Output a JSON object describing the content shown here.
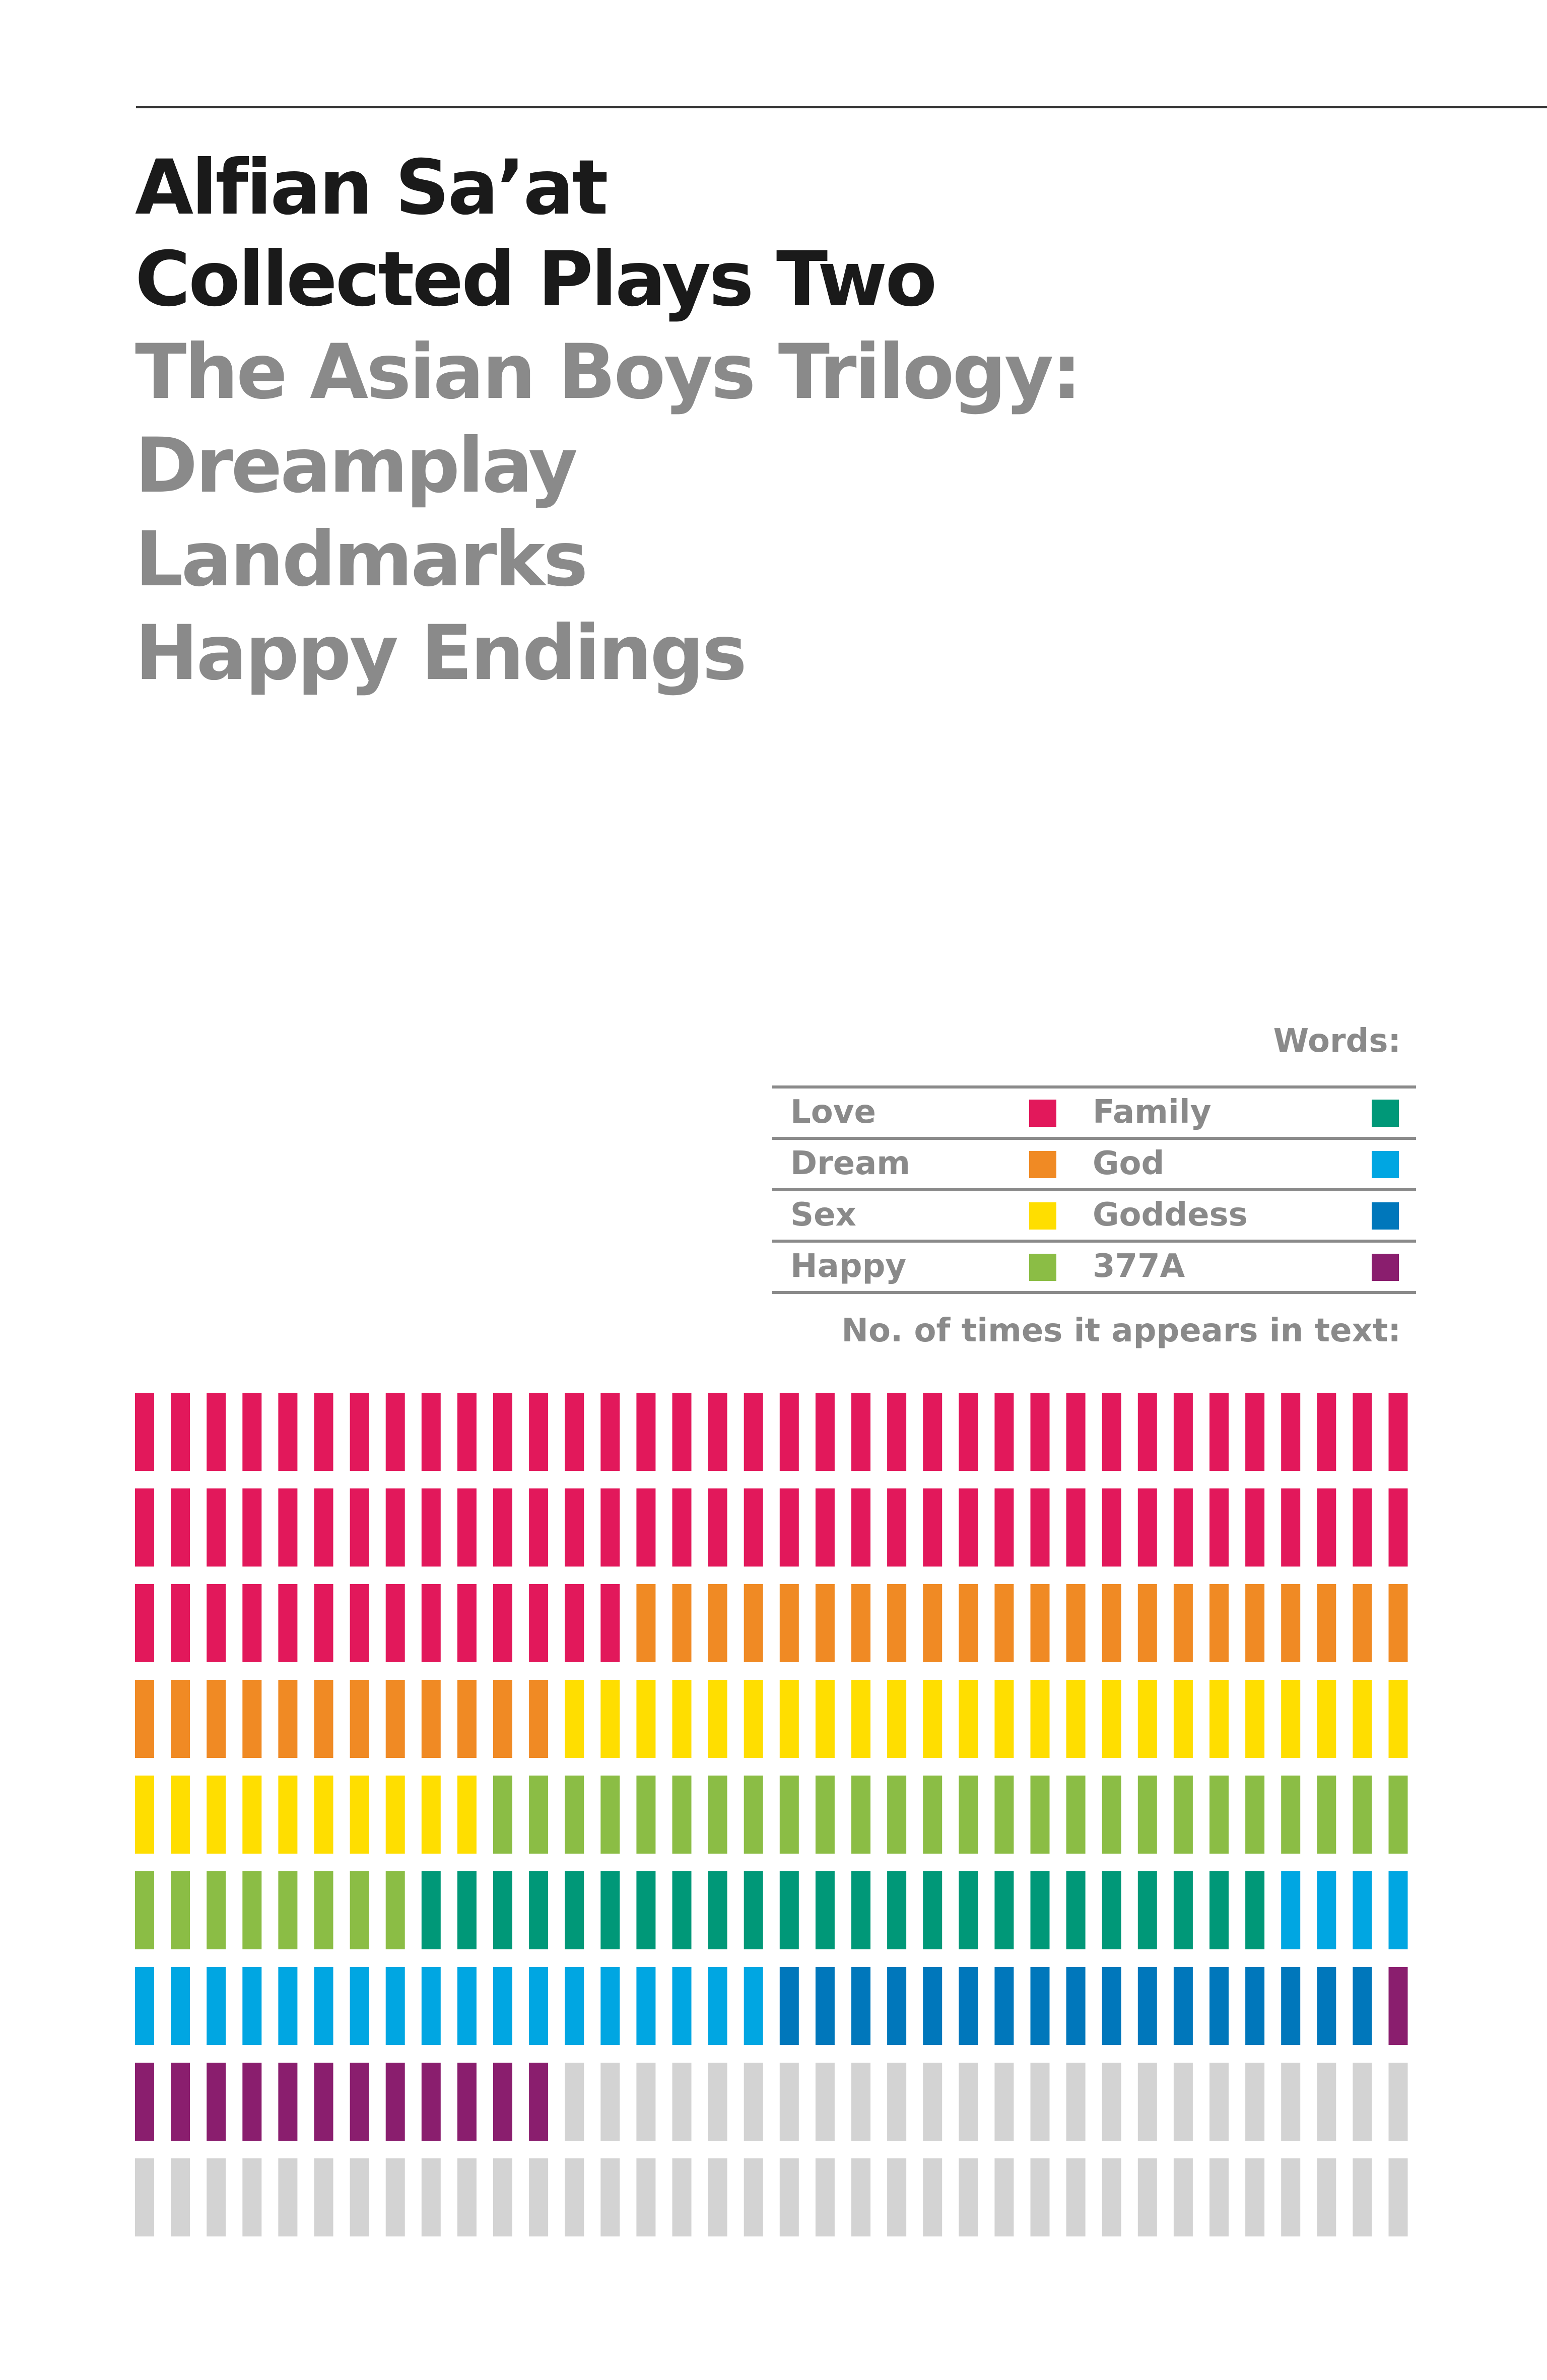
{
  "cover": {
    "author": "Alfian Sa’at",
    "collection": "Collected Plays Two",
    "subtitle": "The Asian Boys Trilogy:",
    "plays": [
      "Dreamplay",
      "Landmarks",
      "Happy Endings"
    ]
  },
  "legend": {
    "title": "Words:",
    "count_label": "No. of times it appears in text:",
    "rows": [
      [
        {
          "label": "Love",
          "color": "#e2185b"
        },
        {
          "label": "Family",
          "color": "#009878"
        }
      ],
      [
        {
          "label": "Dream",
          "color": "#f08a24"
        },
        {
          "label": "God",
          "color": "#00a6e2"
        }
      ],
      [
        {
          "label": "Sex",
          "color": "#ffde00"
        },
        {
          "label": "Goddess",
          "color": "#0077bb"
        }
      ],
      [
        {
          "label": "Happy",
          "color": "#8bbd45"
        },
        {
          "label": "377A",
          "color": "#8a1e6e"
        }
      ]
    ]
  },
  "chart_data": {
    "type": "waffle",
    "columns": 36,
    "rows": 9,
    "empty_color": "#d3d3d3",
    "series": [
      {
        "name": "Love",
        "value": 86,
        "color": "#e2185b"
      },
      {
        "name": "Dream",
        "value": 34,
        "color": "#f08a24"
      },
      {
        "name": "Sex",
        "value": 34,
        "color": "#ffde00"
      },
      {
        "name": "Happy",
        "value": 34,
        "color": "#8bbd45"
      },
      {
        "name": "Family",
        "value": 24,
        "color": "#009878"
      },
      {
        "name": "God",
        "value": 22,
        "color": "#00a6e2"
      },
      {
        "name": "Goddess",
        "value": 17,
        "color": "#0077bb"
      },
      {
        "name": "377A",
        "value": 13,
        "color": "#8a1e6e"
      }
    ]
  }
}
